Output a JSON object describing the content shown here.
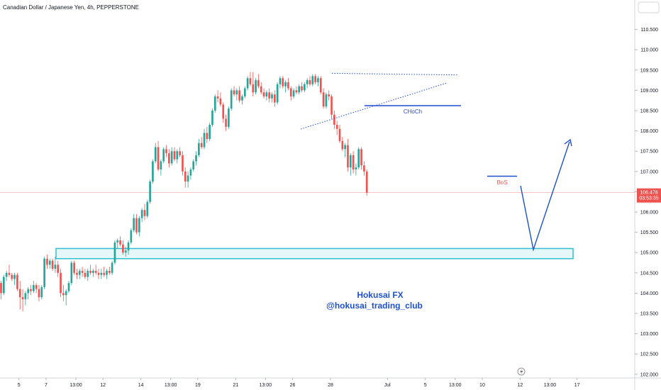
{
  "symbol_title": "Canadian Dollar / Japanese Yen, 4h, PEPPERSTONE",
  "chart_data": {
    "type": "candlestick",
    "title": "Canadian Dollar / Japanese Yen, 4h, PEPPERSTONE",
    "ylim": [
      101.9,
      111.2
    ],
    "xlim": [
      0,
      234
    ],
    "y_ticks": [
      "102.000",
      "102.500",
      "103.000",
      "103.500",
      "104.000",
      "104.500",
      "105.000",
      "105.500",
      "106.000",
      "106.500",
      "107.000",
      "107.500",
      "108.000",
      "108.500",
      "109.000",
      "109.500",
      "110.000",
      "110.500"
    ],
    "x_ticks": [
      {
        "label": "5",
        "x": 7
      },
      {
        "label": "7",
        "x": 17
      },
      {
        "label": "13:00",
        "x": 28
      },
      {
        "label": "12",
        "x": 38
      },
      {
        "label": "14",
        "x": 52
      },
      {
        "label": "13:00",
        "x": 63
      },
      {
        "label": "19",
        "x": 73
      },
      {
        "label": "21",
        "x": 87
      },
      {
        "label": "13:00",
        "x": 98
      },
      {
        "label": "26",
        "x": 108
      },
      {
        "label": "28",
        "x": 122
      },
      {
        "label": "Jul",
        "x": 143
      },
      {
        "label": "5",
        "x": 157
      },
      {
        "label": "13:00",
        "x": 168
      },
      {
        "label": "10",
        "x": 178
      },
      {
        "label": "12",
        "x": 192
      },
      {
        "label": "13:00",
        "x": 203
      },
      {
        "label": "17",
        "x": 213
      }
    ],
    "current_price": "106.478",
    "countdown": "03:53:35",
    "colors": {
      "up": "#26a69a",
      "down": "#ef5350",
      "zone": "#30c0cc",
      "lines": "#1e4fcf",
      "price_line": "#ef5350"
    },
    "candles": [
      [
        104.25,
        104.3,
        103.85,
        104.0
      ],
      [
        104.0,
        104.45,
        103.95,
        104.4
      ],
      [
        104.4,
        104.55,
        104.3,
        104.5
      ],
      [
        104.5,
        104.7,
        104.4,
        104.45
      ],
      [
        104.45,
        104.5,
        104.3,
        104.35
      ],
      [
        104.35,
        104.5,
        104.2,
        104.45
      ],
      [
        104.45,
        104.5,
        104.05,
        104.1
      ],
      [
        104.1,
        104.3,
        103.6,
        103.9
      ],
      [
        103.9,
        104.1,
        103.55,
        103.85
      ],
      [
        103.85,
        104.05,
        103.7,
        104.0
      ],
      [
        104.0,
        104.15,
        103.85,
        104.1
      ],
      [
        104.1,
        104.2,
        103.95,
        104.05
      ],
      [
        104.05,
        104.3,
        104.0,
        104.2
      ],
      [
        104.2,
        104.25,
        104.0,
        104.1
      ],
      [
        104.1,
        104.2,
        103.8,
        103.9
      ],
      [
        103.9,
        104.2,
        103.85,
        104.15
      ],
      [
        104.15,
        104.9,
        104.1,
        104.85
      ],
      [
        104.85,
        104.95,
        104.6,
        104.7
      ],
      [
        104.7,
        104.85,
        104.6,
        104.8
      ],
      [
        104.8,
        104.85,
        104.55,
        104.6
      ],
      [
        104.6,
        104.9,
        104.5,
        104.7
      ],
      [
        104.7,
        104.8,
        104.4,
        104.5
      ],
      [
        104.5,
        104.6,
        103.9,
        104.0
      ],
      [
        104.0,
        104.2,
        103.8,
        103.95
      ],
      [
        103.95,
        104.1,
        103.7,
        104.05
      ],
      [
        104.05,
        104.3,
        104.0,
        104.25
      ],
      [
        104.25,
        104.8,
        104.2,
        104.75
      ],
      [
        104.75,
        104.8,
        104.45,
        104.5
      ],
      [
        104.5,
        104.6,
        104.35,
        104.45
      ],
      [
        104.45,
        104.6,
        104.35,
        104.55
      ],
      [
        104.55,
        104.65,
        104.4,
        104.5
      ],
      [
        104.5,
        104.6,
        104.35,
        104.4
      ],
      [
        104.4,
        104.6,
        104.3,
        104.55
      ],
      [
        104.55,
        104.7,
        104.45,
        104.5
      ],
      [
        104.5,
        104.6,
        104.4,
        104.55
      ],
      [
        104.55,
        104.7,
        104.45,
        104.5
      ],
      [
        104.5,
        104.6,
        104.35,
        104.45
      ],
      [
        104.45,
        104.6,
        104.35,
        104.5
      ],
      [
        104.5,
        104.65,
        104.4,
        104.45
      ],
      [
        104.45,
        104.6,
        104.35,
        104.55
      ],
      [
        104.55,
        104.65,
        104.45,
        104.5
      ],
      [
        104.5,
        104.8,
        104.45,
        104.75
      ],
      [
        104.75,
        105.3,
        104.7,
        105.25
      ],
      [
        105.25,
        105.35,
        105.1,
        105.3
      ],
      [
        105.3,
        105.4,
        105.15,
        105.2
      ],
      [
        105.2,
        105.3,
        104.95,
        105.0
      ],
      [
        105.0,
        105.15,
        104.9,
        105.05
      ],
      [
        105.05,
        105.3,
        104.95,
        105.25
      ],
      [
        105.25,
        105.6,
        105.2,
        105.55
      ],
      [
        105.55,
        105.95,
        105.5,
        105.85
      ],
      [
        105.85,
        105.95,
        105.45,
        105.5
      ],
      [
        105.5,
        105.9,
        105.4,
        105.85
      ],
      [
        105.85,
        106.1,
        105.75,
        106.05
      ],
      [
        106.05,
        106.2,
        105.8,
        105.9
      ],
      [
        105.9,
        106.3,
        105.85,
        106.25
      ],
      [
        106.25,
        106.8,
        106.2,
        106.75
      ],
      [
        106.75,
        107.3,
        106.7,
        107.25
      ],
      [
        107.25,
        107.7,
        107.2,
        107.6
      ],
      [
        107.6,
        107.75,
        107.0,
        107.05
      ],
      [
        107.05,
        107.3,
        106.9,
        107.25
      ],
      [
        107.25,
        107.6,
        107.2,
        107.55
      ],
      [
        107.55,
        107.65,
        107.35,
        107.45
      ],
      [
        107.45,
        107.55,
        107.1,
        107.2
      ],
      [
        107.2,
        107.6,
        107.15,
        107.5
      ],
      [
        107.5,
        107.6,
        107.25,
        107.3
      ],
      [
        107.3,
        107.55,
        107.2,
        107.5
      ],
      [
        107.5,
        107.6,
        107.35,
        107.4
      ],
      [
        107.4,
        107.5,
        106.9,
        107.0
      ],
      [
        107.0,
        107.1,
        106.6,
        106.75
      ],
      [
        106.75,
        107.0,
        106.6,
        106.9
      ],
      [
        106.9,
        107.1,
        106.8,
        107.05
      ],
      [
        107.05,
        107.3,
        107.0,
        107.25
      ],
      [
        107.25,
        107.5,
        107.15,
        107.4
      ],
      [
        107.4,
        107.8,
        107.35,
        107.7
      ],
      [
        107.7,
        107.85,
        107.55,
        107.6
      ],
      [
        107.6,
        108.05,
        107.55,
        107.95
      ],
      [
        107.95,
        108.1,
        107.7,
        107.8
      ],
      [
        107.8,
        108.2,
        107.75,
        108.15
      ],
      [
        108.15,
        108.55,
        108.1,
        108.5
      ],
      [
        108.5,
        108.9,
        108.45,
        108.85
      ],
      [
        108.85,
        109.0,
        108.7,
        108.8
      ],
      [
        108.8,
        108.95,
        108.6,
        108.65
      ],
      [
        108.65,
        108.7,
        108.2,
        108.3
      ],
      [
        108.3,
        108.4,
        108.0,
        108.1
      ],
      [
        108.1,
        108.6,
        108.05,
        108.55
      ],
      [
        108.55,
        109.05,
        108.5,
        109.0
      ],
      [
        109.0,
        109.1,
        108.85,
        108.9
      ],
      [
        108.9,
        109.05,
        108.75,
        109.0
      ],
      [
        109.0,
        109.1,
        108.7,
        108.75
      ],
      [
        108.75,
        108.9,
        108.65,
        108.85
      ],
      [
        108.85,
        109.1,
        108.8,
        109.05
      ],
      [
        109.05,
        109.35,
        109.0,
        109.3
      ],
      [
        109.3,
        109.45,
        109.1,
        109.15
      ],
      [
        109.15,
        109.45,
        108.85,
        108.95
      ],
      [
        108.95,
        109.3,
        108.9,
        109.25
      ],
      [
        109.25,
        109.4,
        109.05,
        109.1
      ],
      [
        109.1,
        109.2,
        108.9,
        108.95
      ],
      [
        108.95,
        109.05,
        108.8,
        108.85
      ],
      [
        108.85,
        109.0,
        108.75,
        108.95
      ],
      [
        108.95,
        109.05,
        108.7,
        108.8
      ],
      [
        108.8,
        108.95,
        108.7,
        108.9
      ],
      [
        108.9,
        109.0,
        108.6,
        108.7
      ],
      [
        108.7,
        109.2,
        108.65,
        109.15
      ],
      [
        109.15,
        109.35,
        109.05,
        109.3
      ],
      [
        109.3,
        109.35,
        109.05,
        109.1
      ],
      [
        109.1,
        109.25,
        108.95,
        109.2
      ],
      [
        109.2,
        109.3,
        109.0,
        109.05
      ],
      [
        109.05,
        109.1,
        108.75,
        108.85
      ],
      [
        108.85,
        109.05,
        108.8,
        109.0
      ],
      [
        109.0,
        109.1,
        108.9,
        108.95
      ],
      [
        108.95,
        109.15,
        108.9,
        109.1
      ],
      [
        109.1,
        109.2,
        108.95,
        109.0
      ],
      [
        109.0,
        109.2,
        108.95,
        109.15
      ],
      [
        109.15,
        109.3,
        109.05,
        109.25
      ],
      [
        109.25,
        109.35,
        109.1,
        109.15
      ],
      [
        109.15,
        109.4,
        109.1,
        109.35
      ],
      [
        109.35,
        109.4,
        109.15,
        109.2
      ],
      [
        109.2,
        109.35,
        109.1,
        109.3
      ],
      [
        109.3,
        109.35,
        108.9,
        108.95
      ],
      [
        108.95,
        109.05,
        108.55,
        108.6
      ],
      [
        108.6,
        108.95,
        108.55,
        108.9
      ],
      [
        108.9,
        109.0,
        108.75,
        108.85
      ],
      [
        108.85,
        108.9,
        108.3,
        108.4
      ],
      [
        108.4,
        108.5,
        108.05,
        108.15
      ],
      [
        108.15,
        108.25,
        107.9,
        108.05
      ],
      [
        108.05,
        108.15,
        107.7,
        107.75
      ],
      [
        107.75,
        107.85,
        107.5,
        107.55
      ],
      [
        107.55,
        107.7,
        107.35,
        107.65
      ],
      [
        107.65,
        107.8,
        107.0,
        107.1
      ],
      [
        107.1,
        107.45,
        106.9,
        107.4
      ],
      [
        107.4,
        107.5,
        106.95,
        107.05
      ],
      [
        107.05,
        107.2,
        106.9,
        107.1
      ],
      [
        107.1,
        107.6,
        107.05,
        107.55
      ],
      [
        107.55,
        107.6,
        107.05,
        107.15
      ],
      [
        107.15,
        107.25,
        106.9,
        107.0
      ],
      [
        107.0,
        107.05,
        106.4,
        106.48
      ]
    ],
    "annotations": {
      "choch": {
        "label": "CHoCh",
        "x0": 143,
        "x1": 170,
        "y": 108.6
      },
      "bos": {
        "label": "BoS",
        "x0": 180,
        "x1": 193,
        "y": 106.87
      },
      "ascending_trendline": {
        "x0": 118,
        "y0": 108.05,
        "x1": 166,
        "y1": 109.05
      },
      "top_resistance": {
        "x0": 131,
        "y0": 109.42,
        "x1": 165,
        "y1": 109.38
      },
      "demand_zone": {
        "x0": 26,
        "x1": 234,
        "y0": 104.85,
        "y1": 105.1
      },
      "projection": [
        [
          204.5,
          106.6
        ],
        [
          209.8,
          105.03
        ],
        [
          222.5,
          107.75
        ]
      ]
    },
    "watermark": [
      "Hokusai FX",
      "@hokusai_trading_club"
    ]
  }
}
